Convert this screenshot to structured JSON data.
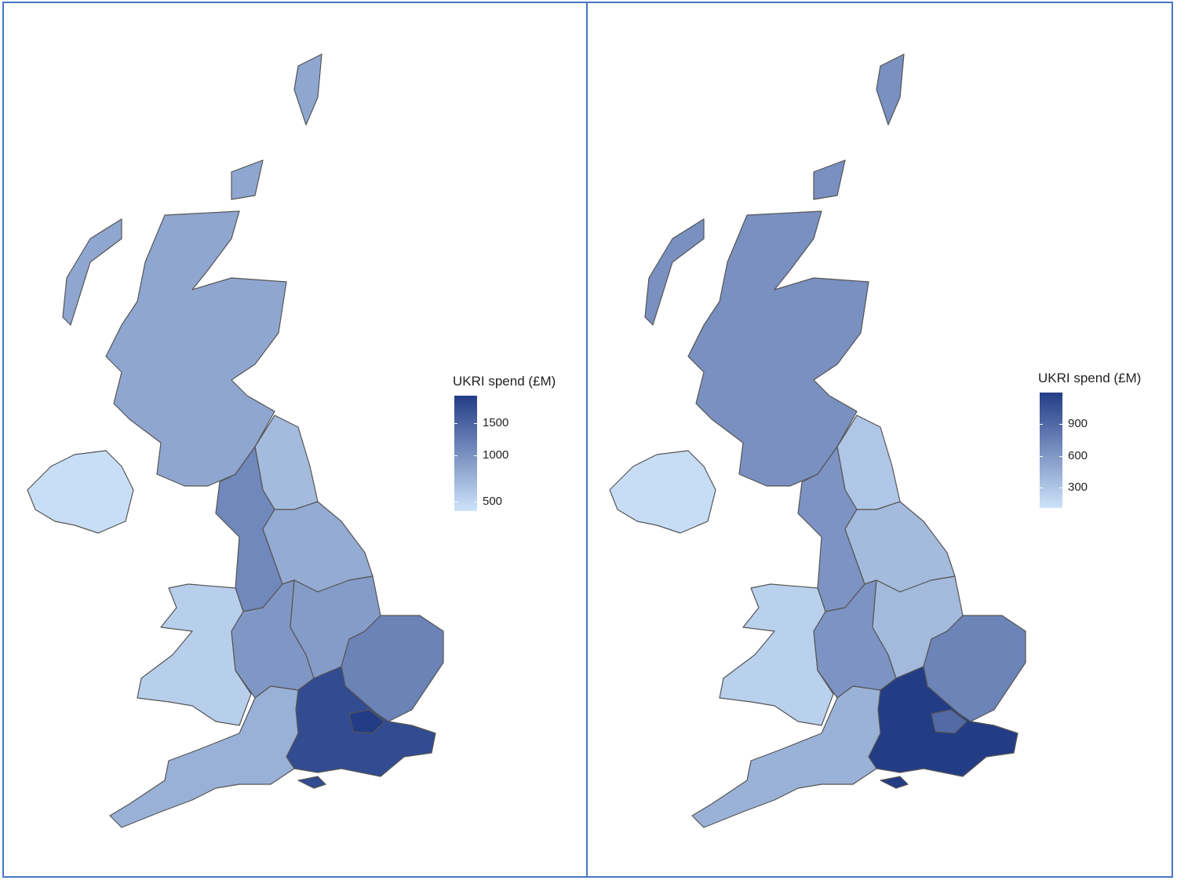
{
  "chart_data": [
    {
      "type": "choropleth",
      "legend_title": "UKRI spend (£M)",
      "legend_ticks": [
        "500",
        "1000",
        "1500"
      ],
      "tick_values": [
        500,
        1000,
        1500
      ],
      "range": [
        100,
        1750
      ],
      "low_color": "#cde3fa",
      "high_color": "#233c86",
      "border_color": "#555555",
      "regions": {
        "scotland": 700,
        "northern-ireland": 150,
        "wales": 300,
        "north-east": 500,
        "north-west": 1000,
        "yorkshire": 650,
        "west-midlands": 850,
        "east-midlands": 800,
        "east-of-england": 1050,
        "london": 1750,
        "south-east": 1600,
        "south-west": 600
      }
    },
    {
      "type": "choropleth",
      "legend_title": "UKRI spend (£M)",
      "legend_ticks": [
        "300",
        "600",
        "900"
      ],
      "tick_values": [
        300,
        600,
        900
      ],
      "range": [
        60,
        1150
      ],
      "low_color": "#cde3fa",
      "high_color": "#233c86",
      "border_color": "#555555",
      "regions": {
        "scotland": 600,
        "northern-ireland": 100,
        "wales": 180,
        "north-east": 250,
        "north-west": 580,
        "yorkshire": 320,
        "west-midlands": 580,
        "east-midlands": 330,
        "east-of-england": 680,
        "london": 850,
        "south-east": 1150,
        "south-west": 380
      }
    }
  ]
}
